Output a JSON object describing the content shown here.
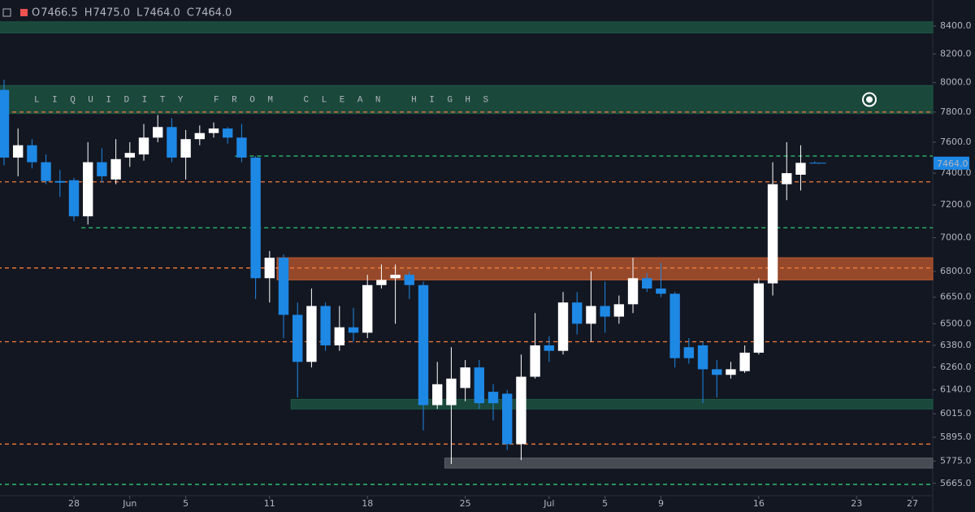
{
  "header": {
    "ohlc": [
      {
        "key": "O",
        "value": "7466.5"
      },
      {
        "key": "H",
        "value": "7475.0"
      },
      {
        "key": "L",
        "value": "7464.0"
      },
      {
        "key": "C",
        "value": "7464.0"
      }
    ]
  },
  "chart_data": {
    "type": "candlestick",
    "log_scale": true,
    "grid": false,
    "up_color": "#ffffff",
    "down_color": "#1e88e5",
    "open": [
      7950,
      7500,
      7580,
      7470,
      7350,
      7355,
      7130,
      7470,
      7360,
      7500,
      7520,
      7630,
      7700,
      7500,
      7620,
      7660,
      7690,
      7630,
      7500,
      6760,
      6880,
      6550,
      6290,
      6600,
      6380,
      6480,
      6450,
      6720,
      6760,
      6780,
      6720,
      6060,
      6060,
      6150,
      6260,
      6130,
      6120,
      5860,
      6210,
      6380,
      6350,
      6620,
      6500,
      6600,
      6540,
      6610,
      6760,
      6700,
      6670,
      6370,
      6380,
      6250,
      6220,
      6240,
      6340,
      6730,
      7330,
      7390,
      7466.5
    ],
    "high": [
      8020,
      7690,
      7620,
      7520,
      7420,
      7370,
      7600,
      7560,
      7620,
      7600,
      7720,
      7780,
      7760,
      7680,
      7710,
      7730,
      7700,
      7720,
      7510,
      6920,
      6900,
      6620,
      6700,
      6620,
      6600,
      6590,
      6780,
      6840,
      6840,
      6800,
      6740,
      6290,
      6370,
      6300,
      6300,
      6170,
      6140,
      6330,
      6560,
      6430,
      6680,
      6680,
      6800,
      6740,
      6660,
      6880,
      6790,
      6850,
      6680,
      6420,
      6400,
      6300,
      6290,
      6380,
      6760,
      7470,
      7600,
      7580,
      7475
    ],
    "low": [
      7450,
      7380,
      7430,
      7330,
      7250,
      7100,
      7080,
      7340,
      7330,
      7440,
      7480,
      7600,
      7470,
      7360,
      7580,
      7630,
      7590,
      7470,
      6640,
      6620,
      6420,
      6100,
      6260,
      6350,
      6350,
      6400,
      6420,
      6700,
      6500,
      6640,
      5930,
      6040,
      5760,
      6080,
      6040,
      5980,
      5830,
      5780,
      6200,
      6290,
      6330,
      6440,
      6400,
      6450,
      6500,
      6560,
      6680,
      6650,
      6260,
      6280,
      6070,
      6100,
      6200,
      6230,
      6330,
      6660,
      7230,
      7290,
      7464
    ],
    "close": [
      7500,
      7580,
      7470,
      7350,
      7340,
      7130,
      7470,
      7380,
      7490,
      7530,
      7630,
      7700,
      7500,
      7620,
      7660,
      7690,
      7630,
      7500,
      6760,
      6880,
      6550,
      6290,
      6600,
      6380,
      6480,
      6450,
      6720,
      6750,
      6780,
      6720,
      6060,
      6170,
      6200,
      6260,
      6070,
      6070,
      5860,
      6210,
      6380,
      6350,
      6620,
      6500,
      6600,
      6540,
      6610,
      6760,
      6700,
      6670,
      6310,
      6310,
      6250,
      6220,
      6250,
      6340,
      6730,
      7330,
      7400,
      7466,
      7464
    ],
    "xlim": [
      -0.29,
      66.45
    ],
    "xticks": [
      {
        "value": 5,
        "label": "28"
      },
      {
        "value": 9,
        "label": "Jun"
      },
      {
        "value": 13,
        "label": "5"
      },
      {
        "value": 19,
        "label": "11"
      },
      {
        "value": 26,
        "label": "18"
      },
      {
        "value": 33,
        "label": "25"
      },
      {
        "value": 39,
        "label": "Jul"
      },
      {
        "value": 43,
        "label": "5"
      },
      {
        "value": 47,
        "label": "9"
      },
      {
        "value": 54,
        "label": "16"
      },
      {
        "value": 61,
        "label": "23"
      },
      {
        "value": 65,
        "label": "27"
      }
    ],
    "ylim": [
      5605,
      8590
    ],
    "yticks": [
      {
        "value": 8400,
        "label": "8400.0"
      },
      {
        "value": 8200,
        "label": "8200.0"
      },
      {
        "value": 8000,
        "label": "8000.0"
      },
      {
        "value": 7800,
        "label": "7800.0"
      },
      {
        "value": 7600,
        "label": "7600.0"
      },
      {
        "value": 7400,
        "label": "7400.0"
      },
      {
        "value": 7200,
        "label": "7200.0"
      },
      {
        "value": 7000,
        "label": "7000.0"
      },
      {
        "value": 6800,
        "label": "6800.0"
      },
      {
        "value": 6650,
        "label": "6650.0"
      },
      {
        "value": 6500,
        "label": "6500.0"
      },
      {
        "value": 6380,
        "label": "6380.0"
      },
      {
        "value": 6260,
        "label": "6260.0"
      },
      {
        "value": 6140,
        "label": "6140.0"
      },
      {
        "value": 6015,
        "label": "6015.0"
      },
      {
        "value": 5895,
        "label": "5895.0"
      },
      {
        "value": 5775,
        "label": "5775.0"
      },
      {
        "value": 5665,
        "label": "5665.0"
      }
    ],
    "last_price": {
      "value": 7464,
      "label": "7464.0"
    },
    "zones": [
      {
        "top": 8430,
        "bottom": 8350,
        "start": 0,
        "color": "#1e5a44"
      },
      {
        "top": 7980,
        "bottom": 7790,
        "start": 0,
        "color": "#1e5a44",
        "text": "LIQUIDITY FROM CLEAN HIGHS"
      },
      {
        "top": 6880,
        "bottom": 6750,
        "start": 20,
        "color": "#c25a2e"
      },
      {
        "top": 6090,
        "bottom": 6040,
        "start": 21,
        "color": "#1e5a44"
      },
      {
        "top": 5790,
        "bottom": 5740,
        "start": 32,
        "color": "#5a5d66"
      }
    ],
    "levels": [
      {
        "price": 7800,
        "start": 0,
        "color": "#f57c3a"
      },
      {
        "price": 7345,
        "start": 0,
        "color": "#f57c3a"
      },
      {
        "price": 6820,
        "start": 0,
        "color": "#f57c3a"
      },
      {
        "price": 6400,
        "start": 0,
        "color": "#f57c3a"
      },
      {
        "price": 5860,
        "start": 0,
        "color": "#f57c3a"
      },
      {
        "price": 7510,
        "start": 17,
        "color": "#2ecc71"
      },
      {
        "price": 7060,
        "start": 6,
        "color": "#2ecc71"
      },
      {
        "price": 5660,
        "start": 0,
        "color": "#2ecc71"
      }
    ]
  }
}
